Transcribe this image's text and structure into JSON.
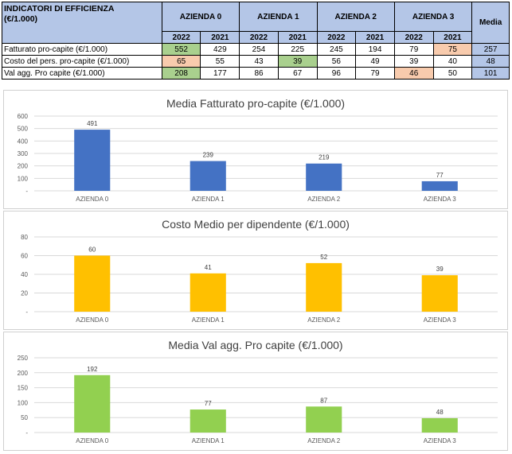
{
  "table": {
    "title_line1": "INDICATORI DI EFFICIENZA",
    "title_line2": "(€/1.000)",
    "companies": [
      "AZIENDA 0",
      "AZIENDA 1",
      "AZIENDA 2",
      "AZIENDA 3"
    ],
    "years": [
      "2022",
      "2021"
    ],
    "avg_header": "Media",
    "rows": [
      {
        "label": "Fatturato pro-capite (€/1.000)",
        "values": [
          "552",
          "429",
          "254",
          "225",
          "245",
          "194",
          "79",
          "75"
        ],
        "avg": "257",
        "highlight": {
          "0": "green",
          "7": "pink"
        }
      },
      {
        "label": "Costo del pers. pro-capite (€/1.000)",
        "values": [
          "65",
          "55",
          "43",
          "39",
          "56",
          "49",
          "39",
          "40"
        ],
        "avg": "48",
        "highlight": {
          "0": "pink",
          "3": "green"
        }
      },
      {
        "label": "Val agg. Pro capite (€/1.000)",
        "values": [
          "208",
          "177",
          "86",
          "67",
          "96",
          "79",
          "46",
          "50"
        ],
        "avg": "101",
        "highlight": {
          "0": "green",
          "6": "pink"
        }
      }
    ],
    "colors": {
      "header_bg": "#b4c6e7",
      "green": "#a9d08e",
      "pink": "#f8cbad"
    }
  },
  "chart_data": [
    {
      "type": "bar",
      "title": "Media Fatturato pro-capite (€/1.000)",
      "categories": [
        "AZIENDA 0",
        "AZIENDA 1",
        "AZIENDA 2",
        "AZIENDA 3"
      ],
      "values": [
        491,
        239,
        219,
        77
      ],
      "data_labels": [
        "491",
        "239",
        "219",
        "77"
      ],
      "yticks": [
        0,
        100,
        200,
        300,
        400,
        500,
        600
      ],
      "ytick_labels": [
        "-",
        "100",
        "200",
        "300",
        "400",
        "500",
        "600"
      ],
      "ylim": [
        0,
        600
      ],
      "color": "#4472c4",
      "grid": true
    },
    {
      "type": "bar",
      "title": "Costo Medio per dipendente (€/1.000)",
      "categories": [
        "AZIENDA 0",
        "AZIENDA 1",
        "AZIENDA 2",
        "AZIENDA 3"
      ],
      "values": [
        60,
        41,
        52,
        39
      ],
      "data_labels": [
        "60",
        "41",
        "52",
        "39"
      ],
      "yticks": [
        0,
        20,
        40,
        60,
        80
      ],
      "ytick_labels": [
        "-",
        "20",
        "40",
        "60",
        "80"
      ],
      "ylim": [
        0,
        80
      ],
      "color": "#ffc000",
      "grid": true
    },
    {
      "type": "bar",
      "title": "Media Val agg. Pro capite (€/1.000)",
      "categories": [
        "AZIENDA 0",
        "AZIENDA 1",
        "AZIENDA 2",
        "AZIENDA 3"
      ],
      "values": [
        192,
        77,
        87,
        48
      ],
      "data_labels": [
        "192",
        "77",
        "87",
        "48"
      ],
      "yticks": [
        0,
        50,
        100,
        150,
        200,
        250
      ],
      "ytick_labels": [
        "-",
        "50",
        "100",
        "150",
        "200",
        "250"
      ],
      "ylim": [
        0,
        250
      ],
      "color": "#92d050",
      "grid": true
    }
  ]
}
